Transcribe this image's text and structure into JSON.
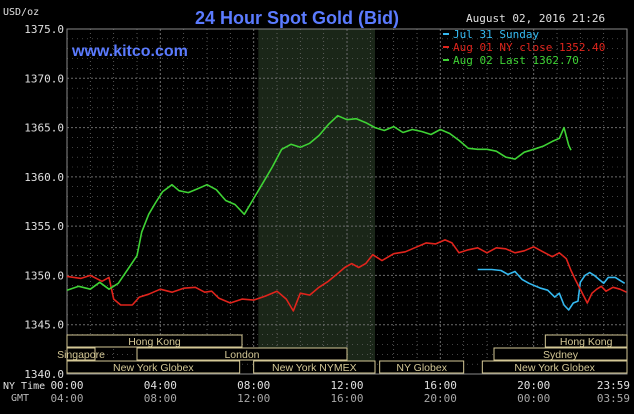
{
  "header": {
    "title": "24 Hour Spot Gold (Bid)",
    "website": "www.kitco.com",
    "datetime": "August 02, 2016 21:26",
    "unit": "USD/oz"
  },
  "colors": {
    "background": "#000000",
    "grid": "#6b6b6b",
    "nymex_shade": "#1a2618",
    "title": "#5b7bff",
    "website": "#5b7bff",
    "text": "#e0e0e0",
    "session_fill": "#000000",
    "session_border": "#d4c896",
    "session_text": "#d4c896"
  },
  "legend": {
    "placement": "top-right",
    "items": [
      {
        "label": "Jul 31 Sunday",
        "color": "#35b9f0"
      },
      {
        "label": "Aug 01 NY close 1352.40",
        "color": "#e0241c"
      },
      {
        "label": "Aug 02 Last 1362.70",
        "color": "#3fd335"
      }
    ]
  },
  "xaxis": {
    "ny_label": "NY Time",
    "gmt_label": "GMT",
    "ny_ticks": [
      "00:00",
      "04:00",
      "08:00",
      "12:00",
      "16:00",
      "20:00",
      "23:59"
    ],
    "gmt_ticks": [
      "04:00",
      "08:00",
      "12:00",
      "16:00",
      "20:00",
      "00:00",
      "03:59"
    ]
  },
  "sessions": [
    {
      "label": "Hong Kong",
      "row": 0,
      "start": 0,
      "end": 7.5
    },
    {
      "label": "Hong Kong",
      "row": 0,
      "start": 20.5,
      "end": 24
    },
    {
      "label": "Singapore",
      "row": 1,
      "start": 0,
      "end": 1.2
    },
    {
      "label": "London",
      "row": 1,
      "start": 3,
      "end": 12
    },
    {
      "label": "Sydney",
      "row": 1,
      "start": 18.3,
      "end": 24
    },
    {
      "label": "New York Globex",
      "row": 2,
      "start": 0,
      "end": 7.4
    },
    {
      "label": "New York NYMEX",
      "row": 2,
      "start": 8,
      "end": 13.2
    },
    {
      "label": "NY Globex",
      "row": 2,
      "start": 13.4,
      "end": 17
    },
    {
      "label": "New York Globex",
      "row": 2,
      "start": 17.8,
      "end": 24
    }
  ],
  "chart_data": {
    "type": "line",
    "title": "24 Hour Spot Gold (Bid)",
    "ylabel": "USD/oz",
    "xlabel": "NY Time",
    "xlim": [
      0,
      24
    ],
    "ylim": [
      1340,
      1375
    ],
    "yticks": [
      1340,
      1345,
      1350,
      1355,
      1360,
      1365,
      1370,
      1375
    ],
    "xticks": [
      0,
      4,
      8,
      12,
      16,
      20,
      23.98
    ],
    "grid": true,
    "nymex_shade": [
      8.2,
      13.2
    ],
    "series": [
      {
        "name": "Jul 31 Sunday",
        "color": "#35b9f0",
        "points": [
          [
            17.6,
            1350.6
          ],
          [
            18.2,
            1350.6
          ],
          [
            18.6,
            1350.5
          ],
          [
            18.9,
            1350.1
          ],
          [
            19.2,
            1350.4
          ],
          [
            19.5,
            1349.6
          ],
          [
            19.8,
            1349.2
          ],
          [
            20.0,
            1349.0
          ],
          [
            20.3,
            1348.7
          ],
          [
            20.6,
            1348.5
          ],
          [
            20.9,
            1347.8
          ],
          [
            21.1,
            1348.2
          ],
          [
            21.3,
            1347.0
          ],
          [
            21.5,
            1346.5
          ],
          [
            21.7,
            1347.2
          ],
          [
            21.9,
            1347.4
          ],
          [
            22.0,
            1349.3
          ],
          [
            22.2,
            1350.0
          ],
          [
            22.4,
            1350.3
          ],
          [
            22.6,
            1350.0
          ],
          [
            22.8,
            1349.6
          ],
          [
            23.0,
            1349.2
          ],
          [
            23.2,
            1349.8
          ],
          [
            23.5,
            1349.8
          ],
          [
            23.7,
            1349.5
          ],
          [
            23.9,
            1349.2
          ]
        ]
      },
      {
        "name": "Aug 01 NY close 1352.40",
        "color": "#e0241c",
        "points": [
          [
            0,
            1349.9
          ],
          [
            0.6,
            1349.7
          ],
          [
            1.0,
            1350.0
          ],
          [
            1.5,
            1349.4
          ],
          [
            1.8,
            1349.8
          ],
          [
            2.0,
            1347.6
          ],
          [
            2.3,
            1347.0
          ],
          [
            2.8,
            1347.0
          ],
          [
            3.1,
            1347.8
          ],
          [
            3.5,
            1348.1
          ],
          [
            4.0,
            1348.6
          ],
          [
            4.5,
            1348.3
          ],
          [
            5.0,
            1348.7
          ],
          [
            5.5,
            1348.8
          ],
          [
            5.9,
            1348.3
          ],
          [
            6.2,
            1348.4
          ],
          [
            6.5,
            1347.7
          ],
          [
            7.0,
            1347.2
          ],
          [
            7.5,
            1347.6
          ],
          [
            8.0,
            1347.5
          ],
          [
            8.5,
            1347.9
          ],
          [
            9.0,
            1348.4
          ],
          [
            9.4,
            1347.6
          ],
          [
            9.7,
            1346.4
          ],
          [
            10.0,
            1348.2
          ],
          [
            10.4,
            1348.0
          ],
          [
            10.8,
            1348.8
          ],
          [
            11.2,
            1349.4
          ],
          [
            11.6,
            1350.2
          ],
          [
            11.9,
            1350.8
          ],
          [
            12.2,
            1351.2
          ],
          [
            12.5,
            1350.8
          ],
          [
            12.8,
            1351.2
          ],
          [
            13.1,
            1352.1
          ],
          [
            13.5,
            1351.5
          ],
          [
            14.0,
            1352.2
          ],
          [
            14.5,
            1352.4
          ],
          [
            15.0,
            1352.9
          ],
          [
            15.4,
            1353.3
          ],
          [
            15.8,
            1353.2
          ],
          [
            16.2,
            1353.6
          ],
          [
            16.5,
            1353.3
          ],
          [
            16.8,
            1352.3
          ],
          [
            17.2,
            1352.6
          ],
          [
            17.6,
            1352.8
          ],
          [
            18.0,
            1352.3
          ],
          [
            18.4,
            1352.8
          ],
          [
            18.8,
            1352.7
          ],
          [
            19.2,
            1352.3
          ],
          [
            19.6,
            1352.5
          ],
          [
            20.0,
            1352.9
          ],
          [
            20.4,
            1352.4
          ],
          [
            20.8,
            1351.9
          ],
          [
            21.1,
            1352.3
          ],
          [
            21.4,
            1351.7
          ],
          [
            21.6,
            1350.5
          ],
          [
            21.8,
            1349.5
          ],
          [
            22.0,
            1348.6
          ],
          [
            22.3,
            1347.2
          ],
          [
            22.5,
            1348.2
          ],
          [
            22.7,
            1348.6
          ],
          [
            22.9,
            1348.9
          ],
          [
            23.1,
            1348.4
          ],
          [
            23.4,
            1348.8
          ],
          [
            23.7,
            1348.6
          ],
          [
            23.98,
            1348.3
          ]
        ]
      },
      {
        "name": "Aug 02 Last 1362.70",
        "color": "#3fd335",
        "points": [
          [
            0,
            1348.5
          ],
          [
            0.5,
            1348.9
          ],
          [
            1.0,
            1348.6
          ],
          [
            1.4,
            1349.3
          ],
          [
            1.8,
            1348.6
          ],
          [
            2.2,
            1349.2
          ],
          [
            2.6,
            1350.6
          ],
          [
            3.0,
            1352.0
          ],
          [
            3.2,
            1354.4
          ],
          [
            3.5,
            1356.2
          ],
          [
            3.8,
            1357.4
          ],
          [
            4.1,
            1358.5
          ],
          [
            4.5,
            1359.2
          ],
          [
            4.8,
            1358.6
          ],
          [
            5.2,
            1358.4
          ],
          [
            5.6,
            1358.8
          ],
          [
            6.0,
            1359.2
          ],
          [
            6.4,
            1358.7
          ],
          [
            6.8,
            1357.6
          ],
          [
            7.2,
            1357.2
          ],
          [
            7.6,
            1356.2
          ],
          [
            8.0,
            1357.8
          ],
          [
            8.4,
            1359.4
          ],
          [
            8.8,
            1361.0
          ],
          [
            9.2,
            1362.8
          ],
          [
            9.6,
            1363.3
          ],
          [
            10.0,
            1363.0
          ],
          [
            10.4,
            1363.4
          ],
          [
            10.8,
            1364.2
          ],
          [
            11.2,
            1365.3
          ],
          [
            11.6,
            1366.2
          ],
          [
            12.0,
            1365.8
          ],
          [
            12.4,
            1365.9
          ],
          [
            12.8,
            1365.5
          ],
          [
            13.2,
            1365.0
          ],
          [
            13.6,
            1364.7
          ],
          [
            14.0,
            1365.1
          ],
          [
            14.4,
            1364.5
          ],
          [
            14.8,
            1364.8
          ],
          [
            15.2,
            1364.6
          ],
          [
            15.6,
            1364.3
          ],
          [
            16.0,
            1364.8
          ],
          [
            16.4,
            1364.4
          ],
          [
            16.8,
            1363.7
          ],
          [
            17.2,
            1362.9
          ],
          [
            17.6,
            1362.8
          ],
          [
            18.0,
            1362.8
          ],
          [
            18.4,
            1362.6
          ],
          [
            18.8,
            1362.0
          ],
          [
            19.2,
            1361.8
          ],
          [
            19.6,
            1362.5
          ],
          [
            20.0,
            1362.8
          ],
          [
            20.4,
            1363.1
          ],
          [
            20.8,
            1363.6
          ],
          [
            21.1,
            1363.9
          ],
          [
            21.3,
            1365.0
          ],
          [
            21.5,
            1363.2
          ],
          [
            21.6,
            1362.7
          ]
        ]
      }
    ]
  }
}
